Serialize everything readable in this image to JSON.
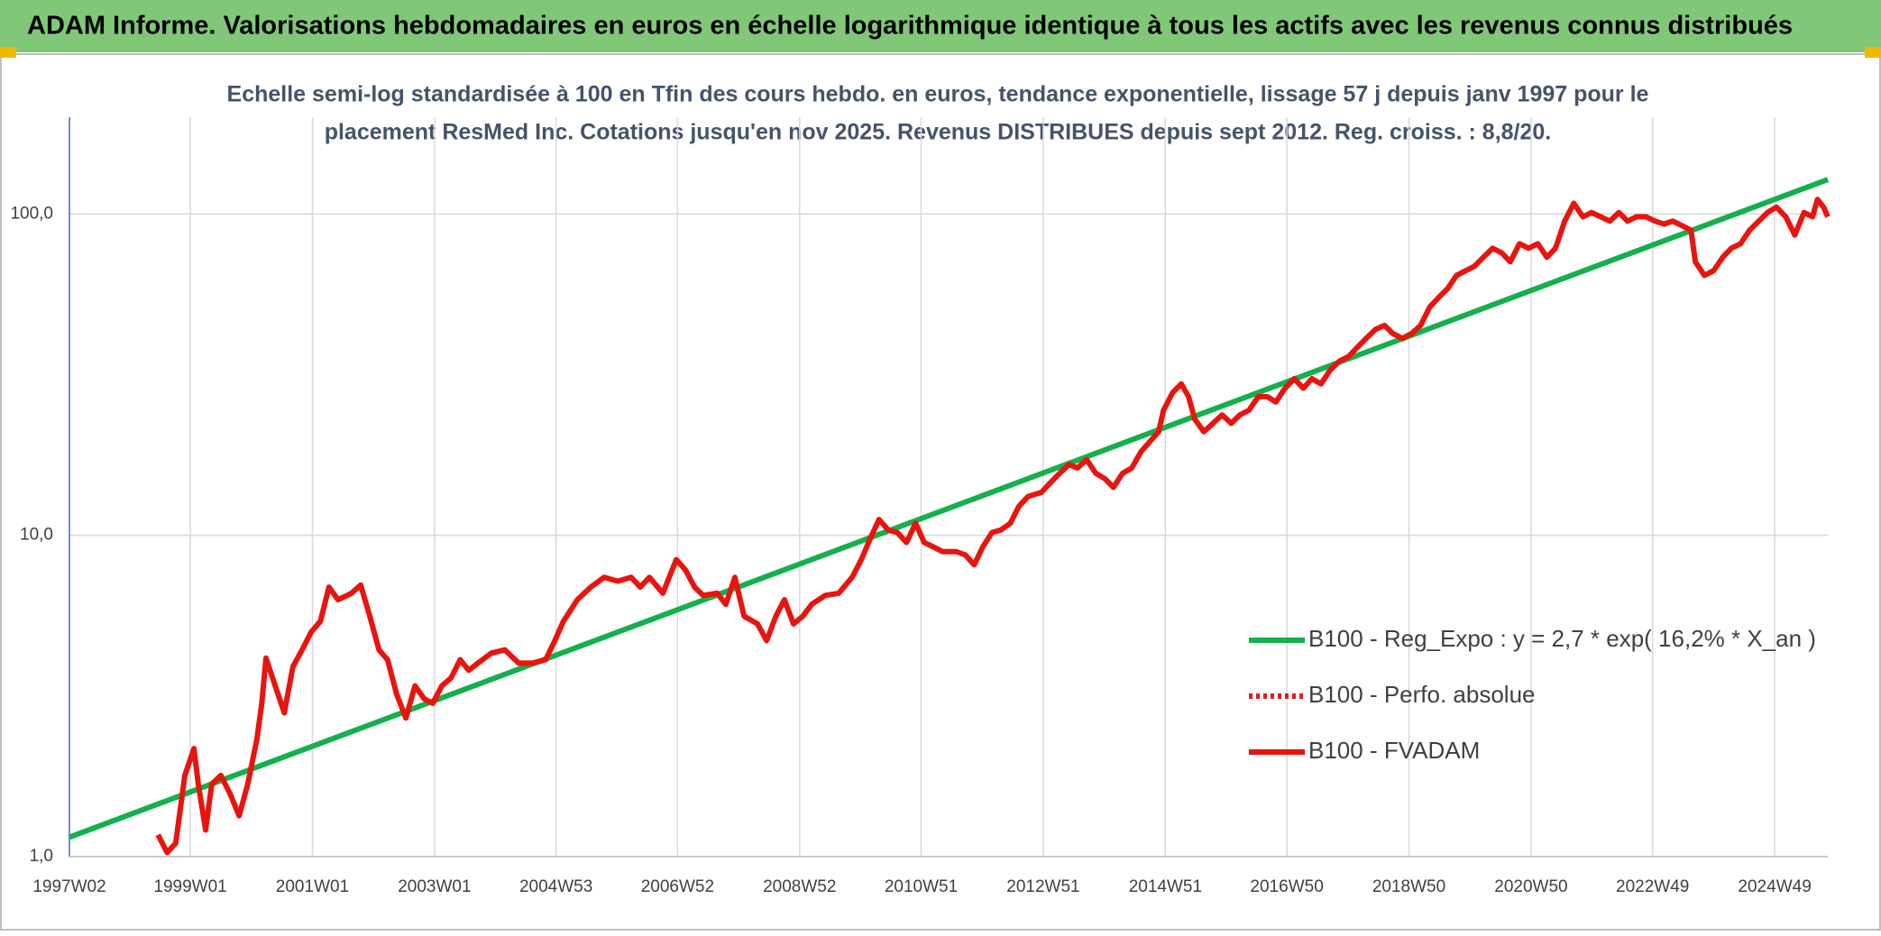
{
  "chart_data": {
    "type": "line",
    "header": "ADAM Informe. Valorisations hebdomadaires en euros en échelle logarithmique identique à tous les actifs avec les revenus connus distribués",
    "subtitle": [
      "Echelle semi-log standardisée à 100 en Tfin des cours hebdo. en euros, tendance exponentielle, lissage 57 j depuis janv 1997 pour le",
      "placement ResMed Inc. Cotations jusqu'en nov 2025. Revenus DISTRIBUES depuis sept 2012. Reg. croiss. : 8,8/20."
    ],
    "log_scale": true,
    "grid": true,
    "legend": "right",
    "xlim": [
      1997.02,
      2025.82
    ],
    "ylim": [
      1,
      200
    ],
    "yticks": [
      {
        "value": 1,
        "label": "1,0"
      },
      {
        "value": 10,
        "label": "10,0"
      },
      {
        "value": 100,
        "label": "100,0"
      }
    ],
    "xticks": [
      {
        "value": 1997.02,
        "label": "1997W02"
      },
      {
        "value": 1999.0,
        "label": "1999W01"
      },
      {
        "value": 2001.0,
        "label": "2001W01"
      },
      {
        "value": 2003.0,
        "label": "2003W01"
      },
      {
        "value": 2004.99,
        "label": "2004W53"
      },
      {
        "value": 2006.98,
        "label": "2006W52"
      },
      {
        "value": 2008.98,
        "label": "2008W52"
      },
      {
        "value": 2010.97,
        "label": "2010W51"
      },
      {
        "value": 2012.97,
        "label": "2012W51"
      },
      {
        "value": 2014.97,
        "label": "2014W51"
      },
      {
        "value": 2016.96,
        "label": "2016W50"
      },
      {
        "value": 2018.96,
        "label": "2018W50"
      },
      {
        "value": 2020.96,
        "label": "2020W50"
      },
      {
        "value": 2022.95,
        "label": "2022W49"
      },
      {
        "value": 2024.95,
        "label": "2024W49"
      }
    ],
    "series": [
      {
        "name": "B100 - Reg_Expo : y = 2,7 * exp( 16,2% *  X_an )",
        "color": "#14b04c",
        "style": "solid",
        "x": [
          1997.02,
          2025.82
        ],
        "values": [
          1.15,
          128
        ]
      },
      {
        "name": "B100 - Perfo. absolue",
        "color": "#e31a1c",
        "style": "dotted"
      },
      {
        "name": "B100 - FVADAM",
        "color": "#e8140e",
        "style": "solid",
        "x": [
          1998.47,
          1998.62,
          1998.76,
          1998.91,
          1999.06,
          1999.13,
          1999.25,
          1999.35,
          1999.5,
          1999.65,
          1999.8,
          1999.94,
          2000.09,
          2000.17,
          2000.24,
          2000.39,
          2000.54,
          2000.68,
          2000.83,
          2000.98,
          2001.13,
          2001.27,
          2001.42,
          2001.64,
          2001.79,
          2001.94,
          2002.09,
          2002.23,
          2002.38,
          2002.53,
          2002.68,
          2002.83,
          2002.97,
          2003.12,
          2003.27,
          2003.42,
          2003.56,
          2003.71,
          2003.93,
          2004.15,
          2004.38,
          2004.6,
          2004.82,
          2004.97,
          2005.11,
          2005.34,
          2005.56,
          2005.78,
          2006.0,
          2006.22,
          2006.37,
          2006.52,
          2006.74,
          2006.96,
          2007.11,
          2007.26,
          2007.4,
          2007.63,
          2007.77,
          2007.92,
          2008.07,
          2008.29,
          2008.44,
          2008.59,
          2008.73,
          2008.88,
          2009.03,
          2009.18,
          2009.4,
          2009.62,
          2009.84,
          2009.99,
          2010.14,
          2010.28,
          2010.43,
          2010.58,
          2010.73,
          2010.88,
          2011.02,
          2011.17,
          2011.32,
          2011.54,
          2011.69,
          2011.84,
          2011.98,
          2012.13,
          2012.28,
          2012.43,
          2012.57,
          2012.72,
          2012.94,
          2013.09,
          2013.24,
          2013.39,
          2013.53,
          2013.68,
          2013.83,
          2013.98,
          2014.12,
          2014.27,
          2014.42,
          2014.57,
          2014.72,
          2014.86,
          2014.94,
          2015.09,
          2015.23,
          2015.35,
          2015.45,
          2015.6,
          2015.75,
          2015.9,
          2016.05,
          2016.19,
          2016.34,
          2016.49,
          2016.64,
          2016.78,
          2016.93,
          2017.08,
          2017.23,
          2017.37,
          2017.52,
          2017.67,
          2017.82,
          2017.97,
          2018.11,
          2018.26,
          2018.41,
          2018.56,
          2018.7,
          2018.85,
          2019.0,
          2019.15,
          2019.3,
          2019.44,
          2019.59,
          2019.74,
          2019.89,
          2020.03,
          2020.18,
          2020.33,
          2020.48,
          2020.62,
          2020.77,
          2020.92,
          2021.07,
          2021.22,
          2021.36,
          2021.51,
          2021.66,
          2021.81,
          2021.95,
          2022.1,
          2022.25,
          2022.4,
          2022.54,
          2022.69,
          2022.84,
          2022.99,
          2023.14,
          2023.28,
          2023.43,
          2023.58,
          2023.65,
          2023.8,
          2023.95,
          2024.1,
          2024.24,
          2024.39,
          2024.54,
          2024.69,
          2024.83,
          2024.98,
          2025.13,
          2025.28,
          2025.43,
          2025.57,
          2025.65,
          2025.75,
          2025.82
        ],
        "values": [
          1.17,
          1.03,
          1.1,
          1.79,
          2.17,
          1.68,
          1.21,
          1.68,
          1.79,
          1.57,
          1.34,
          1.68,
          2.32,
          3.0,
          4.15,
          3.4,
          2.8,
          3.9,
          4.4,
          5.0,
          5.4,
          6.9,
          6.3,
          6.6,
          7.0,
          5.6,
          4.4,
          4.1,
          3.2,
          2.7,
          3.4,
          3.1,
          3.0,
          3.4,
          3.6,
          4.1,
          3.8,
          4.0,
          4.3,
          4.4,
          4.0,
          4.0,
          4.1,
          4.7,
          5.4,
          6.3,
          6.9,
          7.4,
          7.2,
          7.4,
          6.9,
          7.4,
          6.6,
          8.4,
          7.8,
          6.9,
          6.5,
          6.6,
          6.1,
          7.4,
          5.6,
          5.3,
          4.7,
          5.6,
          6.3,
          5.3,
          5.6,
          6.1,
          6.5,
          6.6,
          7.4,
          8.4,
          9.8,
          11.2,
          10.4,
          10.2,
          9.5,
          10.9,
          9.5,
          9.2,
          8.9,
          8.9,
          8.7,
          8.1,
          9.2,
          10.2,
          10.4,
          10.9,
          12.3,
          13.2,
          13.6,
          14.6,
          15.6,
          16.6,
          16.2,
          17.2,
          15.6,
          15.0,
          14.1,
          15.6,
          16.2,
          18.2,
          19.6,
          21.0,
          24.5,
          27.8,
          29.6,
          27,
          23,
          21,
          22.3,
          23.7,
          22.3,
          23.7,
          24.5,
          27,
          27,
          26,
          28.7,
          30.7,
          28.7,
          30.7,
          29.6,
          32.7,
          34.8,
          36,
          38.4,
          41,
          43.7,
          45,
          42.4,
          41,
          42.4,
          45,
          51.3,
          54.8,
          58.5,
          64.4,
          66.6,
          68.7,
          73.3,
          78.2,
          75.7,
          71,
          80.8,
          78.2,
          80.8,
          73.3,
          78.2,
          95,
          108,
          98,
          101,
          98,
          95,
          101,
          95,
          98,
          98,
          95,
          93,
          95,
          92,
          89,
          71,
          64.4,
          66.6,
          73.3,
          78.2,
          80.8,
          89,
          95,
          101,
          105,
          98,
          86,
          101,
          98,
          111,
          105,
          98
        ]
      }
    ]
  }
}
